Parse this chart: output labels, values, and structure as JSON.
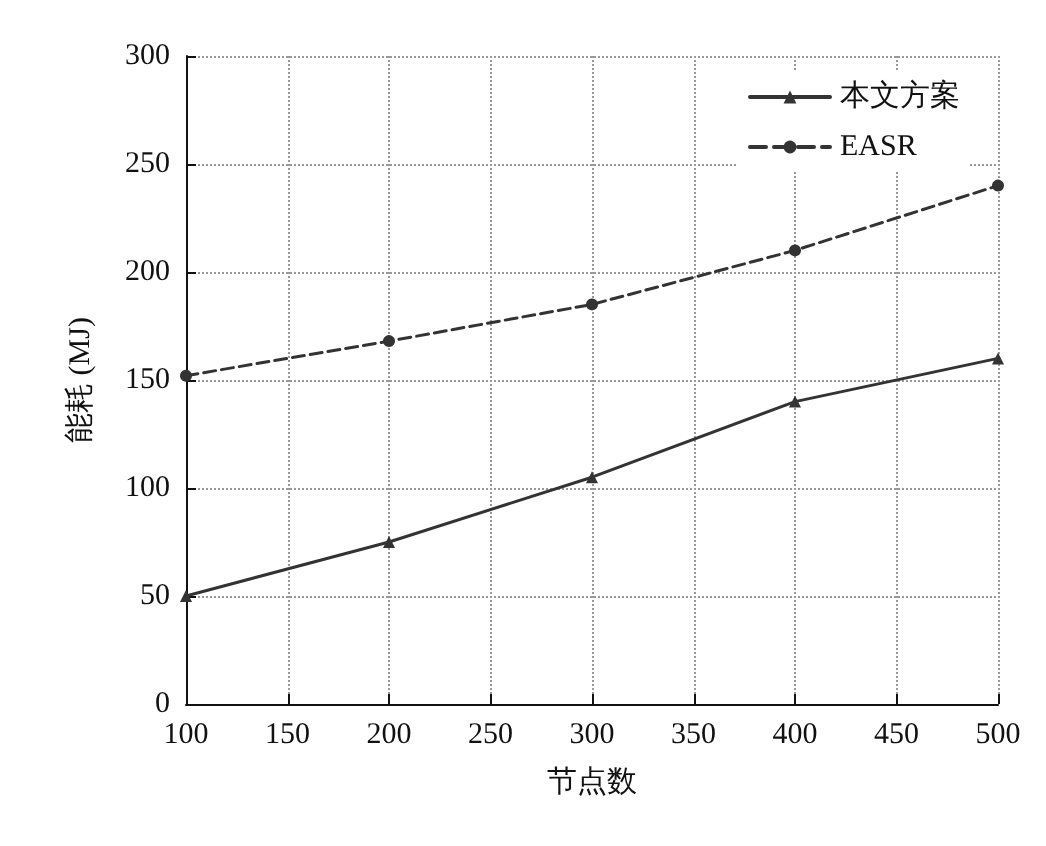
{
  "chart_data": {
    "type": "line",
    "xlabel": "节点数",
    "ylabel": "能耗 (MJ)",
    "x": [
      100,
      200,
      300,
      400,
      500
    ],
    "series": [
      {
        "name": "本文方案",
        "color": "#333333",
        "values": [
          50,
          75,
          105,
          140,
          160
        ],
        "marker": "triangle",
        "line_style": "solid"
      },
      {
        "name": "EASR",
        "color": "#333333",
        "values": [
          152,
          168,
          185,
          210,
          240
        ],
        "marker": "circle",
        "line_style": "dashed"
      }
    ],
    "xlim": [
      100,
      500
    ],
    "xticks": [
      100,
      150,
      200,
      250,
      300,
      350,
      400,
      450,
      500
    ],
    "ylim": [
      0,
      300
    ],
    "yticks": [
      0,
      50,
      100,
      150,
      200,
      250,
      300
    ],
    "grid": true,
    "legend": "top right"
  }
}
